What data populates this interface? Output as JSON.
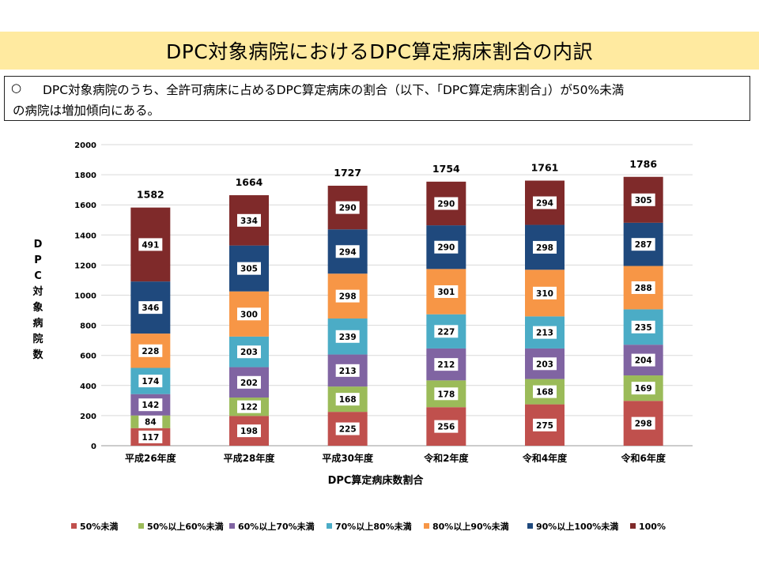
{
  "page": {
    "title": "DPC対象病院におけるDPC算定病床割合の内訳",
    "note_bullet": "○",
    "note_line1": "DPC対象病院のうち、全許可病床に占めるDPC算定病床の割合（以下、「DPC算定病床割合」）が50%未満",
    "note_line2": "の病院は増加傾向にある。"
  },
  "chart_data": {
    "type": "bar",
    "stacked": true,
    "title": "",
    "xlabel": "DPC算定病床数割合",
    "ylabel": "DPC対象病院数",
    "ylim": [
      0,
      2000
    ],
    "yticks": [
      0,
      200,
      400,
      600,
      800,
      1000,
      1200,
      1400,
      1600,
      1800,
      2000
    ],
    "grid": true,
    "legend_position": "bottom",
    "categories": [
      "平成26年度",
      "平成28年度",
      "平成30年度",
      "令和2年度",
      "令和4年度",
      "令和6年度"
    ],
    "totals": [
      1582,
      1664,
      1727,
      1754,
      1761,
      1786
    ],
    "series": [
      {
        "name": "50%未満",
        "color": "#c0504d",
        "values": [
          117,
          198,
          225,
          256,
          275,
          298
        ]
      },
      {
        "name": "50%以上60%未満",
        "color": "#9bbb59",
        "values": [
          84,
          122,
          168,
          178,
          168,
          169
        ]
      },
      {
        "name": "60%以上70%未満",
        "color": "#8064a2",
        "values": [
          142,
          202,
          213,
          212,
          203,
          204
        ]
      },
      {
        "name": "70%以上80%未満",
        "color": "#4bacc6",
        "values": [
          174,
          203,
          239,
          227,
          213,
          235
        ]
      },
      {
        "name": "80%以上90%未満",
        "color": "#f79646",
        "values": [
          228,
          300,
          298,
          301,
          310,
          288
        ]
      },
      {
        "name": "90%以上100%未満",
        "color": "#1f497d",
        "values": [
          346,
          305,
          294,
          290,
          298,
          287
        ]
      },
      {
        "name": "100%",
        "color": "#7f2a2a",
        "values": [
          491,
          334,
          290,
          290,
          294,
          305
        ]
      }
    ]
  }
}
